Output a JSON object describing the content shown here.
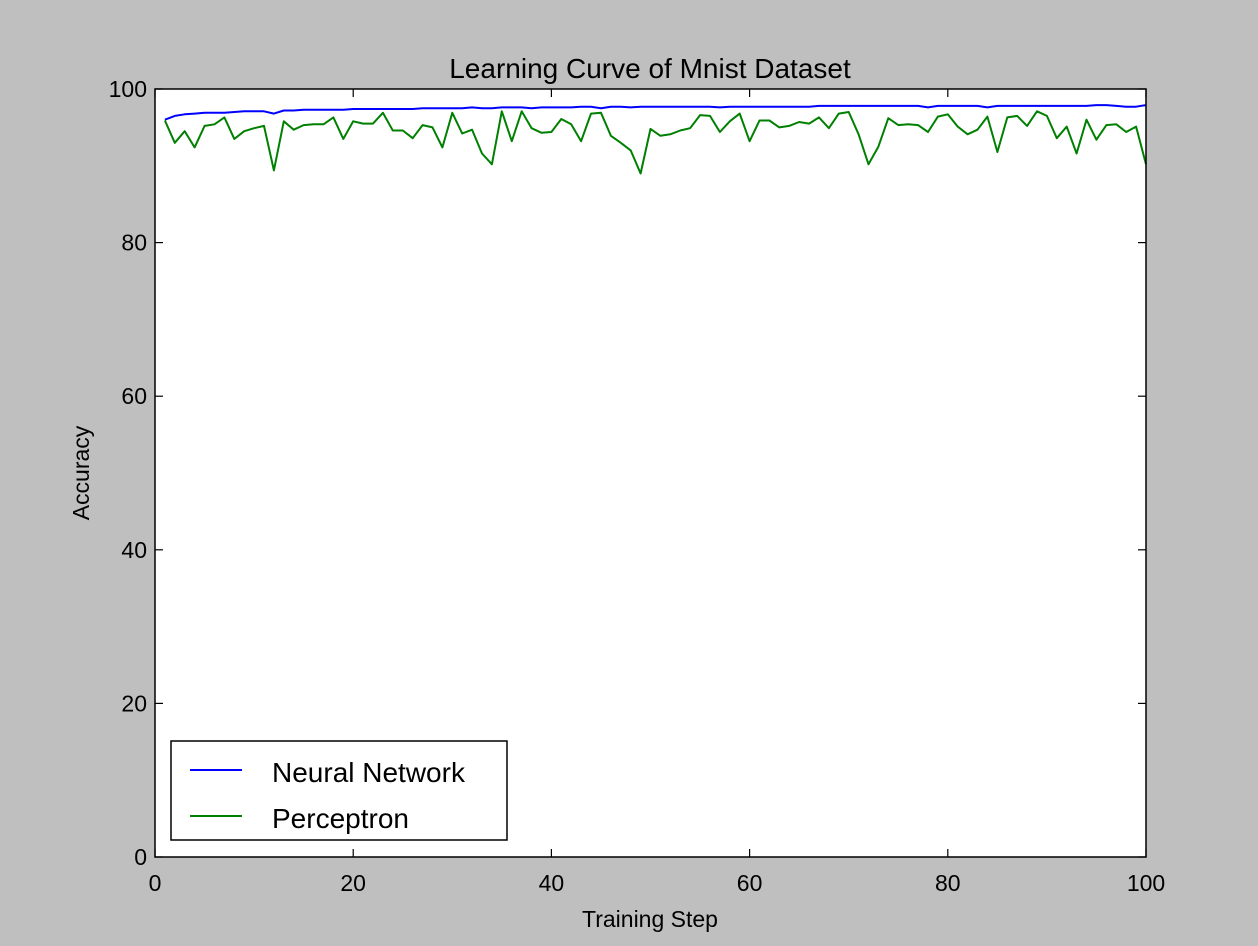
{
  "chart_data": {
    "type": "line",
    "title": "Learning Curve of Mnist Dataset",
    "xlabel": "Training Step",
    "ylabel": "Accuracy",
    "xlim": [
      0,
      100
    ],
    "ylim": [
      0,
      100
    ],
    "xticks": [
      "0",
      "20",
      "40",
      "60",
      "80",
      "100"
    ],
    "yticks": [
      "0",
      "20",
      "40",
      "60",
      "80",
      "100"
    ],
    "grid": false,
    "legend_position": "lower-left",
    "x": [
      1,
      2,
      3,
      4,
      5,
      6,
      7,
      8,
      9,
      10,
      11,
      12,
      13,
      14,
      15,
      16,
      17,
      18,
      19,
      20,
      21,
      22,
      23,
      24,
      25,
      26,
      27,
      28,
      29,
      30,
      31,
      32,
      33,
      34,
      35,
      36,
      37,
      38,
      39,
      40,
      41,
      42,
      43,
      44,
      45,
      46,
      47,
      48,
      49,
      50,
      51,
      52,
      53,
      54,
      55,
      56,
      57,
      58,
      59,
      60,
      61,
      62,
      63,
      64,
      65,
      66,
      67,
      68,
      69,
      70,
      71,
      72,
      73,
      74,
      75,
      76,
      77,
      78,
      79,
      80,
      81,
      82,
      83,
      84,
      85,
      86,
      87,
      88,
      89,
      90,
      91,
      92,
      93,
      94,
      95,
      96,
      97,
      98,
      99,
      100
    ],
    "series": [
      {
        "name": "Neural Network",
        "color": "#0000ff",
        "values": [
          96.0,
          96.5,
          96.7,
          96.8,
          96.9,
          96.9,
          96.9,
          97.0,
          97.1,
          97.1,
          97.1,
          96.8,
          97.2,
          97.2,
          97.3,
          97.3,
          97.3,
          97.3,
          97.3,
          97.4,
          97.4,
          97.4,
          97.4,
          97.4,
          97.4,
          97.4,
          97.5,
          97.5,
          97.5,
          97.5,
          97.5,
          97.6,
          97.5,
          97.5,
          97.6,
          97.6,
          97.6,
          97.5,
          97.6,
          97.6,
          97.6,
          97.6,
          97.7,
          97.7,
          97.5,
          97.7,
          97.7,
          97.6,
          97.7,
          97.7,
          97.7,
          97.7,
          97.7,
          97.7,
          97.7,
          97.7,
          97.6,
          97.7,
          97.7,
          97.7,
          97.7,
          97.7,
          97.7,
          97.7,
          97.7,
          97.7,
          97.8,
          97.8,
          97.8,
          97.8,
          97.8,
          97.8,
          97.8,
          97.8,
          97.8,
          97.8,
          97.8,
          97.6,
          97.8,
          97.8,
          97.8,
          97.8,
          97.8,
          97.6,
          97.8,
          97.8,
          97.8,
          97.8,
          97.8,
          97.8,
          97.8,
          97.8,
          97.8,
          97.8,
          97.9,
          97.9,
          97.8,
          97.7,
          97.7,
          97.9
        ]
      },
      {
        "name": "Perceptron",
        "color": "#008000",
        "values": [
          95.9,
          93.0,
          94.5,
          92.4,
          95.2,
          95.4,
          96.3,
          93.5,
          94.5,
          94.9,
          95.2,
          89.4,
          95.8,
          94.7,
          95.3,
          95.4,
          95.4,
          96.3,
          93.5,
          95.8,
          95.5,
          95.5,
          96.9,
          94.6,
          94.6,
          93.6,
          95.3,
          95.0,
          92.4,
          96.9,
          94.2,
          94.7,
          91.6,
          90.2,
          97.1,
          93.2,
          97.1,
          94.9,
          94.3,
          94.4,
          96.1,
          95.4,
          93.2,
          96.8,
          96.9,
          93.9,
          93.0,
          92.0,
          89.0,
          94.8,
          93.9,
          94.1,
          94.6,
          94.9,
          96.6,
          96.5,
          94.4,
          95.8,
          96.8,
          93.2,
          95.9,
          95.9,
          95.0,
          95.2,
          95.7,
          95.5,
          96.3,
          94.9,
          96.8,
          97.0,
          94.1,
          90.2,
          92.5,
          96.2,
          95.3,
          95.4,
          95.3,
          94.4,
          96.4,
          96.7,
          95.1,
          94.1,
          94.7,
          96.4,
          91.8,
          96.3,
          96.5,
          95.2,
          97.1,
          96.5,
          93.6,
          95.1,
          91.6,
          96.0,
          93.4,
          95.3,
          95.4,
          94.4,
          95.1,
          90.2
        ]
      }
    ]
  }
}
